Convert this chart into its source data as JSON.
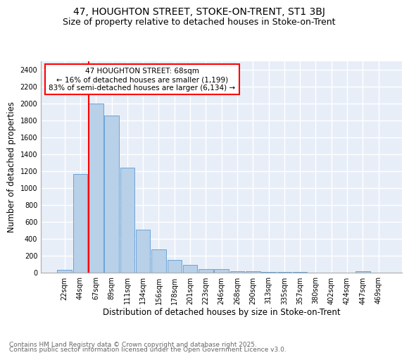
{
  "title": "47, HOUGHTON STREET, STOKE-ON-TRENT, ST1 3BJ",
  "subtitle": "Size of property relative to detached houses in Stoke-on-Trent",
  "xlabel": "Distribution of detached houses by size in Stoke-on-Trent",
  "ylabel": "Number of detached properties",
  "bin_labels": [
    "22sqm",
    "44sqm",
    "67sqm",
    "89sqm",
    "111sqm",
    "134sqm",
    "156sqm",
    "178sqm",
    "201sqm",
    "223sqm",
    "246sqm",
    "268sqm",
    "290sqm",
    "313sqm",
    "335sqm",
    "357sqm",
    "380sqm",
    "402sqm",
    "424sqm",
    "447sqm",
    "469sqm"
  ],
  "bar_values": [
    30,
    1170,
    2000,
    1860,
    1240,
    510,
    275,
    150,
    90,
    45,
    45,
    20,
    15,
    10,
    5,
    5,
    3,
    2,
    2,
    15,
    0
  ],
  "bar_color": "#b8d0e8",
  "bar_edge_color": "#5b9bd5",
  "red_line_index": 2,
  "annotation_text": "47 HOUGHTON STREET: 68sqm\n← 16% of detached houses are smaller (1,199)\n83% of semi-detached houses are larger (6,134) →",
  "annotation_box_color": "white",
  "annotation_box_edge_color": "red",
  "footer_line1": "Contains HM Land Registry data © Crown copyright and database right 2025.",
  "footer_line2": "Contains public sector information licensed under the Open Government Licence v3.0.",
  "ylim": [
    0,
    2500
  ],
  "yticks": [
    0,
    200,
    400,
    600,
    800,
    1000,
    1200,
    1400,
    1600,
    1800,
    2000,
    2200,
    2400
  ],
  "background_color": "#e8eef8",
  "grid_color": "white",
  "title_fontsize": 10,
  "subtitle_fontsize": 9,
  "axis_label_fontsize": 8.5,
  "tick_fontsize": 7,
  "annotation_fontsize": 7.5,
  "footer_fontsize": 6.5
}
